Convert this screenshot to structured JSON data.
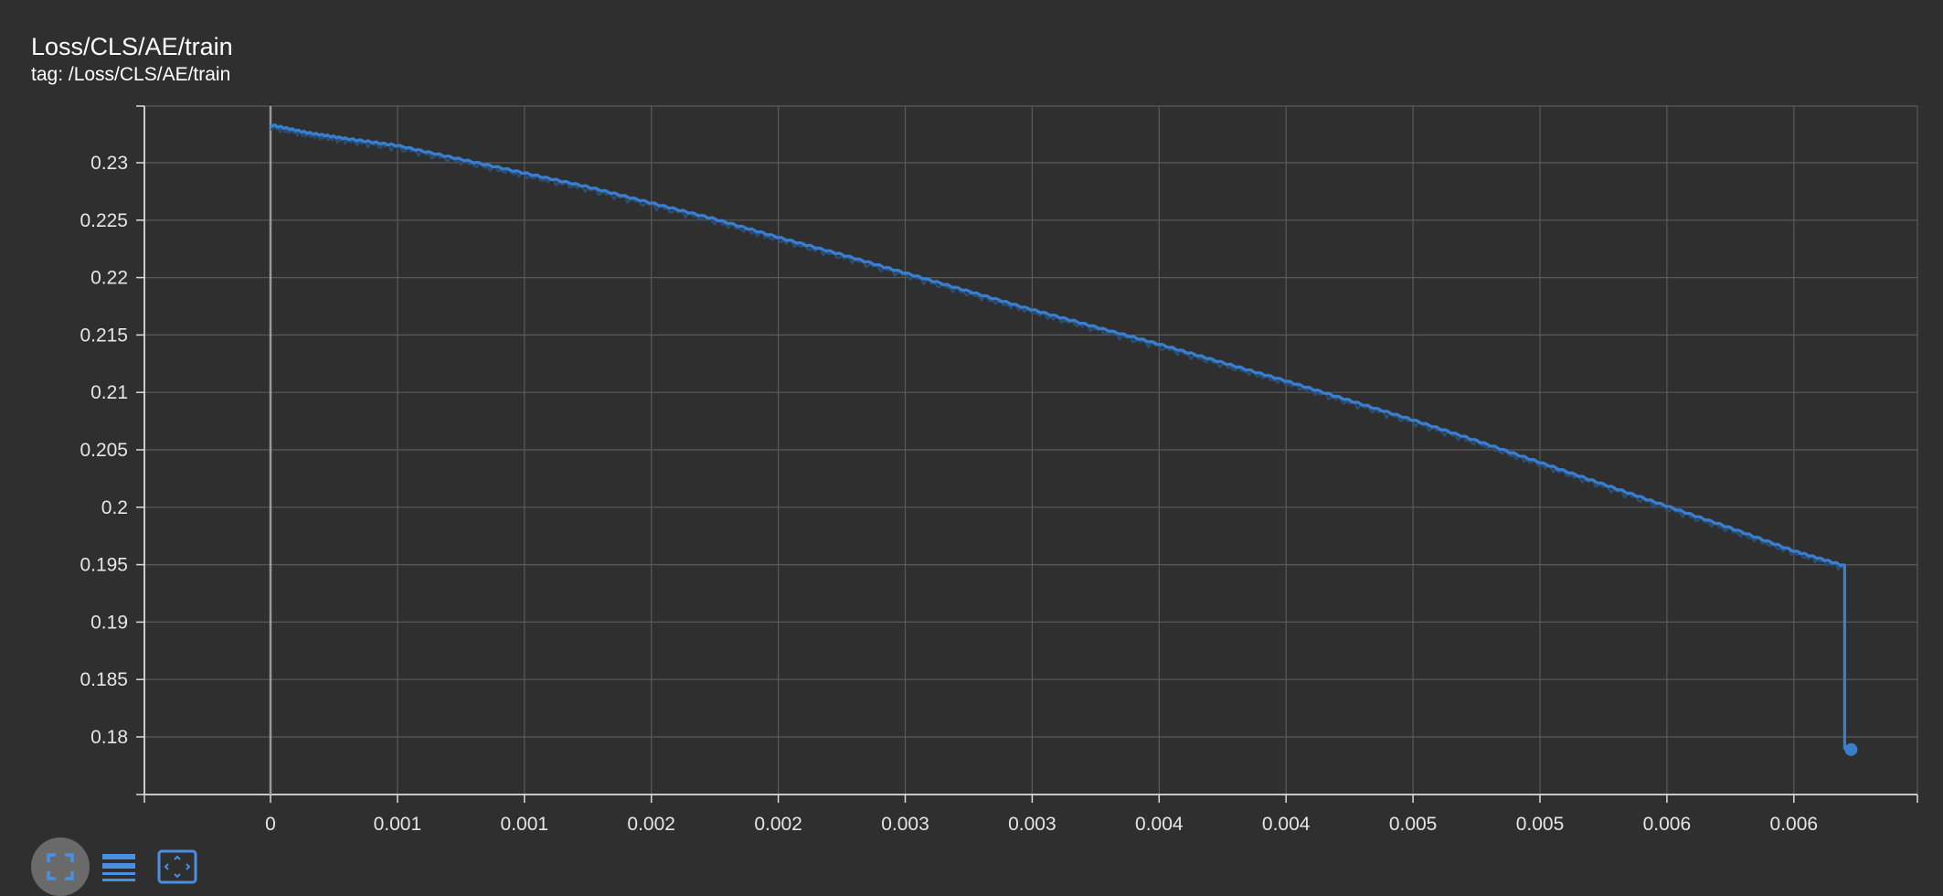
{
  "title": "Loss/CLS/AE/train",
  "tag": "tag: /Loss/CLS/AE/train",
  "colors": {
    "background": "#2f2f2f",
    "grid": "#5a5a5a",
    "axis": "#dcdcdc",
    "line": "#3a7fcf",
    "raw_line": "#2a4f76",
    "toolbar_icon": "#4a90e2",
    "toolbar_active_bg": "#6a6a6a"
  },
  "toolbar": {
    "fit_domain_icon": "fit-to-domain-icon",
    "toggle_log_icon": "lines-icon",
    "expand_icon": "expand-icon"
  },
  "chart_data": {
    "type": "line",
    "title": "Loss/CLS/AE/train",
    "xlabel": "",
    "ylabel": "",
    "x_tick_labels": [
      "0",
      "0.001",
      "0.001",
      "0.002",
      "0.002",
      "0.003",
      "0.003",
      "0.004",
      "0.004",
      "0.005",
      "0.005",
      "0.006",
      "0.006"
    ],
    "x_tick_values": [
      0,
      0.0005,
      0.001,
      0.0015,
      0.002,
      0.0025,
      0.003,
      0.0035,
      0.004,
      0.0045,
      0.005,
      0.0055,
      0.006
    ],
    "y_tick_labels": [
      "0.23",
      "0.225",
      "0.22",
      "0.215",
      "0.21",
      "0.205",
      "0.2",
      "0.195",
      "0.19",
      "0.185",
      "0.18"
    ],
    "y_tick_values": [
      0.23,
      0.225,
      0.22,
      0.215,
      0.21,
      0.205,
      0.2,
      0.195,
      0.19,
      0.185,
      0.18
    ],
    "xlim": [
      -0.0005,
      0.0065
    ],
    "ylim": [
      0.175,
      0.2349
    ],
    "grid": true,
    "series": [
      {
        "x": [
          0,
          0.00015,
          0.0003,
          0.0005,
          0.00075,
          0.001,
          0.00125,
          0.0015,
          0.00175,
          0.002,
          0.00225,
          0.0025,
          0.00275,
          0.003,
          0.00325,
          0.0035,
          0.00375,
          0.004,
          0.00425,
          0.0045,
          0.00475,
          0.005,
          0.00525,
          0.0055,
          0.00575,
          0.006,
          0.0062
        ],
        "y": [
          0.2333,
          0.2326,
          0.2321,
          0.2315,
          0.2303,
          0.2291,
          0.2279,
          0.2265,
          0.2251,
          0.2235,
          0.222,
          0.2204,
          0.2188,
          0.2172,
          0.2157,
          0.2142,
          0.2126,
          0.211,
          0.2093,
          0.2076,
          0.2058,
          0.2039,
          0.202,
          0.2001,
          0.1982,
          0.1962,
          0.1949
        ]
      }
    ],
    "last_point": {
      "x": 0.0062,
      "y": 0.1789
    }
  }
}
